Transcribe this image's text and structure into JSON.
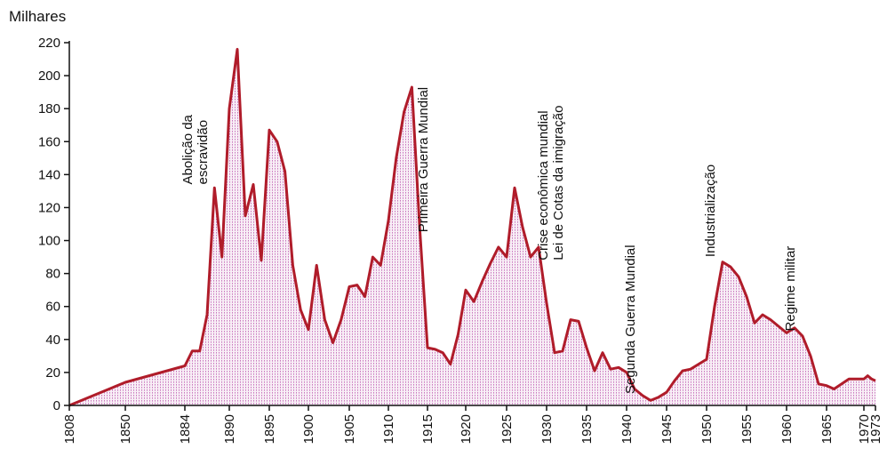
{
  "chart_data": {
    "type": "area",
    "title": "",
    "ylabel": "Milhares",
    "xlabel": "",
    "ylim": [
      0,
      220
    ],
    "yticks": [
      0,
      20,
      40,
      60,
      80,
      100,
      120,
      140,
      160,
      180,
      200,
      220
    ],
    "xtick_labels": [
      "1808",
      "1850",
      "1884",
      "1890",
      "1895",
      "1900",
      "1905",
      "1910",
      "1915",
      "1920",
      "1925",
      "1930",
      "1935",
      "1940",
      "1945",
      "1950",
      "1955",
      "1960",
      "1965",
      "1970",
      "1973"
    ],
    "grid": false,
    "legend": "none",
    "colors": {
      "line": "#b01c2a",
      "fill": "#cc88c4",
      "axis": "#111111"
    },
    "series": [
      {
        "values": [
          {
            "x": "1808",
            "y": 0
          },
          {
            "x": "1850",
            "y": 14
          },
          {
            "x": "1884",
            "y": 24
          },
          {
            "x": "1885",
            "y": 33
          },
          {
            "x": "1886",
            "y": 33
          },
          {
            "x": "1887",
            "y": 55
          },
          {
            "x": "1888",
            "y": 132
          },
          {
            "x": "1889",
            "y": 90
          },
          {
            "x": "1890",
            "y": 180
          },
          {
            "x": "1891",
            "y": 216
          },
          {
            "x": "1892",
            "y": 115
          },
          {
            "x": "1893",
            "y": 134
          },
          {
            "x": "1894",
            "y": 88
          },
          {
            "x": "1895",
            "y": 167
          },
          {
            "x": "1896",
            "y": 160
          },
          {
            "x": "1897",
            "y": 142
          },
          {
            "x": "1898",
            "y": 85
          },
          {
            "x": "1899",
            "y": 58
          },
          {
            "x": "1900",
            "y": 46
          },
          {
            "x": "1901",
            "y": 85
          },
          {
            "x": "1902",
            "y": 52
          },
          {
            "x": "1903",
            "y": 38
          },
          {
            "x": "1904",
            "y": 52
          },
          {
            "x": "1905",
            "y": 72
          },
          {
            "x": "1906",
            "y": 73
          },
          {
            "x": "1907",
            "y": 66
          },
          {
            "x": "1908",
            "y": 90
          },
          {
            "x": "1909",
            "y": 85
          },
          {
            "x": "1910",
            "y": 112
          },
          {
            "x": "1911",
            "y": 150
          },
          {
            "x": "1912",
            "y": 178
          },
          {
            "x": "1913",
            "y": 193
          },
          {
            "x": "1914",
            "y": 108
          },
          {
            "x": "1915",
            "y": 35
          },
          {
            "x": "1916",
            "y": 34
          },
          {
            "x": "1917",
            "y": 32
          },
          {
            "x": "1918",
            "y": 25
          },
          {
            "x": "1919",
            "y": 43
          },
          {
            "x": "1920",
            "y": 70
          },
          {
            "x": "1921",
            "y": 63
          },
          {
            "x": "1922",
            "y": 75
          },
          {
            "x": "1923",
            "y": 86
          },
          {
            "x": "1924",
            "y": 96
          },
          {
            "x": "1925",
            "y": 90
          },
          {
            "x": "1926",
            "y": 132
          },
          {
            "x": "1927",
            "y": 108
          },
          {
            "x": "1928",
            "y": 90
          },
          {
            "x": "1929",
            "y": 96
          },
          {
            "x": "1930",
            "y": 62
          },
          {
            "x": "1931",
            "y": 32
          },
          {
            "x": "1932",
            "y": 33
          },
          {
            "x": "1933",
            "y": 52
          },
          {
            "x": "1934",
            "y": 51
          },
          {
            "x": "1935",
            "y": 35
          },
          {
            "x": "1936",
            "y": 21
          },
          {
            "x": "1937",
            "y": 32
          },
          {
            "x": "1938",
            "y": 22
          },
          {
            "x": "1939",
            "y": 23
          },
          {
            "x": "1940",
            "y": 20
          },
          {
            "x": "1941",
            "y": 10
          },
          {
            "x": "1942",
            "y": 6
          },
          {
            "x": "1943",
            "y": 3
          },
          {
            "x": "1944",
            "y": 5
          },
          {
            "x": "1945",
            "y": 8
          },
          {
            "x": "1946",
            "y": 15
          },
          {
            "x": "1947",
            "y": 21
          },
          {
            "x": "1948",
            "y": 22
          },
          {
            "x": "1949",
            "y": 25
          },
          {
            "x": "1950",
            "y": 28
          },
          {
            "x": "1951",
            "y": 60
          },
          {
            "x": "1952",
            "y": 87
          },
          {
            "x": "1953",
            "y": 84
          },
          {
            "x": "1954",
            "y": 78
          },
          {
            "x": "1955",
            "y": 66
          },
          {
            "x": "1956",
            "y": 50
          },
          {
            "x": "1957",
            "y": 55
          },
          {
            "x": "1958",
            "y": 52
          },
          {
            "x": "1959",
            "y": 48
          },
          {
            "x": "1960",
            "y": 44
          },
          {
            "x": "1961",
            "y": 47
          },
          {
            "x": "1962",
            "y": 42
          },
          {
            "x": "1963",
            "y": 30
          },
          {
            "x": "1964",
            "y": 13
          },
          {
            "x": "1965",
            "y": 12
          },
          {
            "x": "1966",
            "y": 10
          },
          {
            "x": "1967",
            "y": 13
          },
          {
            "x": "1968",
            "y": 16
          },
          {
            "x": "1969",
            "y": 16
          },
          {
            "x": "1970",
            "y": 16
          },
          {
            "x": "1971",
            "y": 18
          },
          {
            "x": "1972",
            "y": 16
          },
          {
            "x": "1973",
            "y": 15
          }
        ]
      }
    ],
    "annotations": [
      {
        "lines": [
          "Abolição da",
          "escravidão"
        ],
        "x": "1887",
        "y": 134
      },
      {
        "lines": [
          "Primeira Guerra Mundial"
        ],
        "x": "1915",
        "y": 105
      },
      {
        "lines": [
          "Crise econômica mundial",
          "Lei de Cotas da imigração"
        ],
        "x": "1932",
        "y": 88
      },
      {
        "lines": [
          "Segunda Guerra Mundial"
        ],
        "x": "1941",
        "y": 7
      },
      {
        "lines": [
          "Industrialização"
        ],
        "x": "1951",
        "y": 90
      },
      {
        "lines": [
          "Regime militar"
        ],
        "x": "1961",
        "y": 45
      }
    ]
  }
}
